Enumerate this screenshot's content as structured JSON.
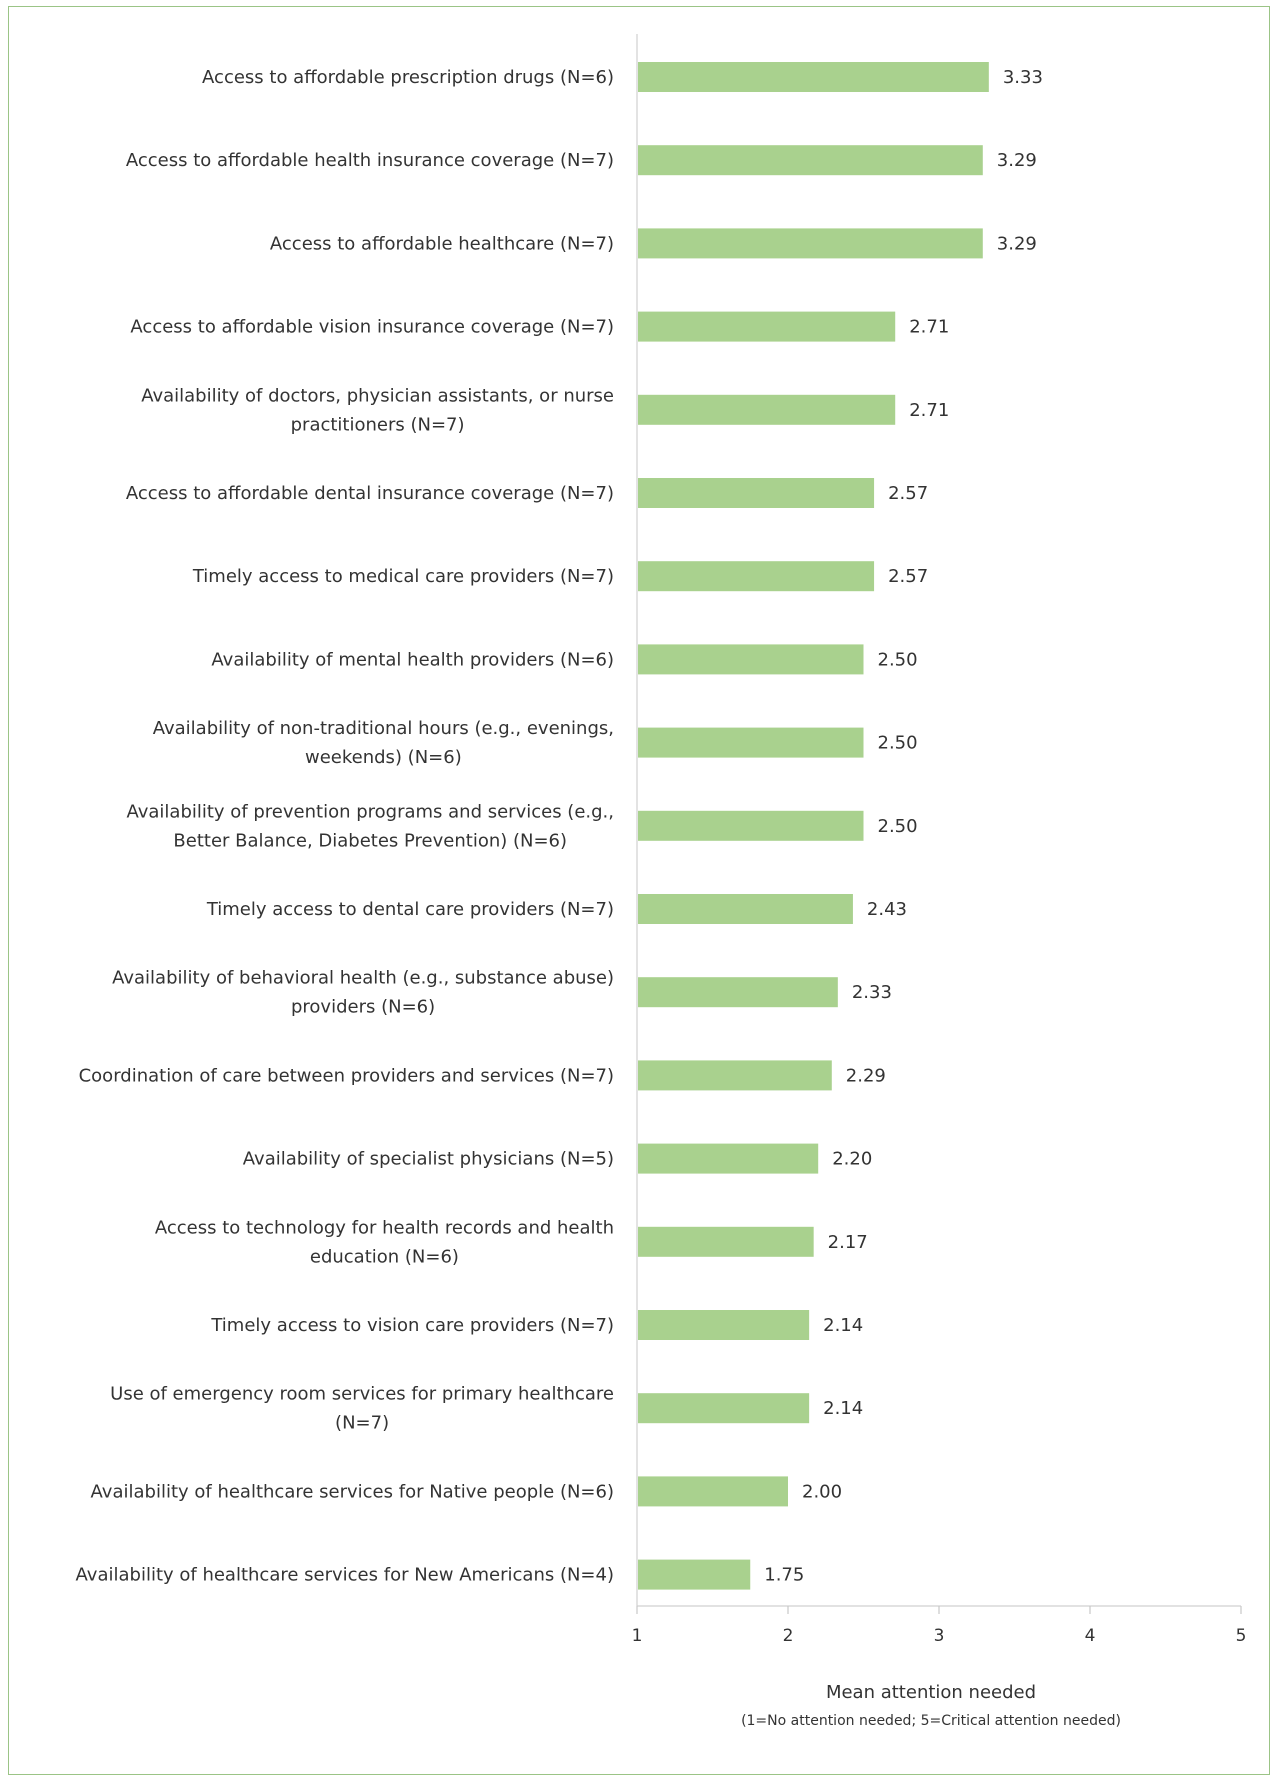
{
  "chart_data": {
    "type": "bar",
    "orientation": "horizontal",
    "categories": [
      "Access to affordable prescription drugs (N=6)",
      "Access to affordable health insurance coverage (N=7)",
      "Access to affordable healthcare (N=7)",
      "Access to affordable vision insurance coverage (N=7)",
      [
        "Availability of doctors, physician assistants, or nurse",
        "practitioners (N=7)"
      ],
      "Access to affordable dental insurance coverage (N=7)",
      "Timely access to medical care providers (N=7)",
      "Availability of mental health providers (N=6)",
      [
        "Availability of non-traditional hours (e.g., evenings,",
        "weekends) (N=6)"
      ],
      [
        "Availability of prevention programs and services (e.g.,",
        "Better Balance, Diabetes Prevention) (N=6)"
      ],
      "Timely access to dental care providers (N=7)",
      [
        "Availability of behavioral health (e.g., substance abuse)",
        "providers (N=6)"
      ],
      "Coordination of care between providers and services (N=7)",
      "Availability of specialist physicians (N=5)",
      [
        "Access to technology for health records and health",
        "education (N=6)"
      ],
      "Timely access to vision care providers (N=7)",
      [
        "Use of emergency room services for primary healthcare",
        "(N=7)"
      ],
      "Availability of healthcare services for Native people (N=6)",
      "Availability of healthcare services for New Americans (N=4)"
    ],
    "values": [
      3.33,
      3.29,
      3.29,
      2.71,
      2.71,
      2.57,
      2.57,
      2.5,
      2.5,
      2.5,
      2.43,
      2.33,
      2.29,
      2.2,
      2.17,
      2.14,
      2.14,
      2.0,
      1.75
    ],
    "value_labels": [
      "3.33",
      "3.29",
      "3.29",
      "2.71",
      "2.71",
      "2.57",
      "2.57",
      "2.50",
      "2.50",
      "2.50",
      "2.43",
      "2.33",
      "2.29",
      "2.20",
      "2.17",
      "2.14",
      "2.14",
      "2.00",
      "1.75"
    ],
    "xlim": [
      1,
      5
    ],
    "x_ticks": [
      "1",
      "2",
      "3",
      "4",
      "5"
    ],
    "xlabel": "Mean attention needed",
    "xlabel_note": "(1=No attention needed; 5=Critical attention needed)",
    "bar_color": "#a9d18e",
    "grid": false,
    "legend": "none"
  }
}
